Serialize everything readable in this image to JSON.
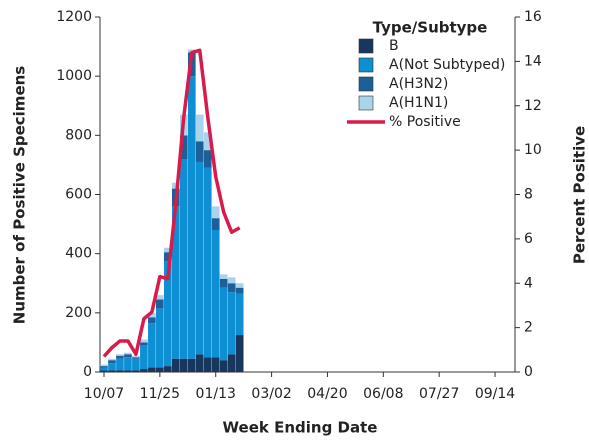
{
  "chart_data": {
    "type": "bar",
    "x_label": "Week Ending Date",
    "y_label": "Number of Positive Specimens",
    "y2_label": "Percent Positive",
    "legend_title": "Type/Subtype",
    "legend_position": "top-right",
    "stacked": true,
    "categories": [
      "10/07",
      null,
      null,
      null,
      null,
      null,
      null,
      "11/25",
      null,
      null,
      null,
      null,
      null,
      null,
      "01/13",
      null,
      null,
      null,
      null,
      null,
      null,
      "03/02",
      null,
      null,
      null,
      null,
      null,
      null,
      "04/20",
      null,
      null,
      null,
      null,
      null,
      null,
      "06/08",
      null,
      null,
      null,
      null,
      null,
      null,
      "07/27",
      null,
      null,
      null,
      null,
      null,
      null,
      "09/14",
      null,
      null
    ],
    "series": [
      {
        "name": "B",
        "color": "#17375e",
        "values": [
          5,
          5,
          5,
          5,
          5,
          10,
          15,
          15,
          20,
          45,
          45,
          45,
          60,
          50,
          50,
          40,
          60,
          125,
          null,
          null,
          null,
          null,
          null,
          null,
          null,
          null,
          null,
          null,
          null,
          null,
          null,
          null,
          null,
          null,
          null,
          null,
          null,
          null,
          null,
          null,
          null,
          null,
          null,
          null,
          null,
          null,
          null,
          null,
          null,
          null,
          null,
          null
        ]
      },
      {
        "name": "A(Not Subtyped)",
        "color": "#0e8fd3",
        "values": [
          10,
          25,
          40,
          45,
          40,
          80,
          150,
          200,
          355,
          515,
          675,
          955,
          650,
          640,
          430,
          245,
          210,
          140,
          null,
          null,
          null,
          null,
          null,
          null,
          null,
          null,
          null,
          null,
          null,
          null,
          null,
          null,
          null,
          null,
          null,
          null,
          null,
          null,
          null,
          null,
          null,
          null,
          null,
          null,
          null,
          null,
          null,
          null,
          null,
          null,
          null,
          null
        ]
      },
      {
        "name": "A(H3N2)",
        "color": "#1d5f99",
        "values": [
          5,
          10,
          10,
          10,
          5,
          10,
          20,
          30,
          30,
          60,
          80,
          80,
          70,
          60,
          40,
          30,
          30,
          20,
          null,
          null,
          null,
          null,
          null,
          null,
          null,
          null,
          null,
          null,
          null,
          null,
          null,
          null,
          null,
          null,
          null,
          null,
          null,
          null,
          null,
          null,
          null,
          null,
          null,
          null,
          null,
          null,
          null,
          null,
          null,
          null,
          null,
          null
        ]
      },
      {
        "name": "A(H1N1)",
        "color": "#a8d4ec",
        "values": [
          5,
          5,
          5,
          5,
          5,
          10,
          15,
          15,
          15,
          20,
          70,
          10,
          90,
          60,
          40,
          15,
          20,
          15,
          null,
          null,
          null,
          null,
          null,
          null,
          null,
          null,
          null,
          null,
          null,
          null,
          null,
          null,
          null,
          null,
          null,
          null,
          null,
          null,
          null,
          null,
          null,
          null,
          null,
          null,
          null,
          null,
          null,
          null,
          null,
          null,
          null,
          null
        ]
      },
      {
        "name": "% Positive",
        "color": "#d81b4a",
        "type": "line",
        "axis": "y2",
        "values": [
          0.7,
          1.1,
          1.4,
          1.4,
          0.8,
          2.4,
          2.7,
          4.3,
          4.2,
          7.6,
          11.5,
          14.4,
          14.5,
          11.5,
          8.8,
          7.2,
          6.3,
          6.5,
          null,
          null,
          null,
          null,
          null,
          null,
          null,
          null,
          null,
          null,
          null,
          null,
          null,
          null,
          null,
          null,
          null,
          null,
          null,
          null,
          null,
          null,
          null,
          null,
          null,
          null,
          null,
          null,
          null,
          null,
          null,
          null,
          null,
          null
        ]
      }
    ],
    "ylim": [
      0,
      1200
    ],
    "yticks": [
      0,
      200,
      400,
      600,
      800,
      1000,
      1200
    ],
    "y2lim": [
      0,
      16
    ],
    "y2ticks": [
      0,
      2,
      4,
      6,
      8,
      10,
      12,
      14,
      16
    ]
  }
}
